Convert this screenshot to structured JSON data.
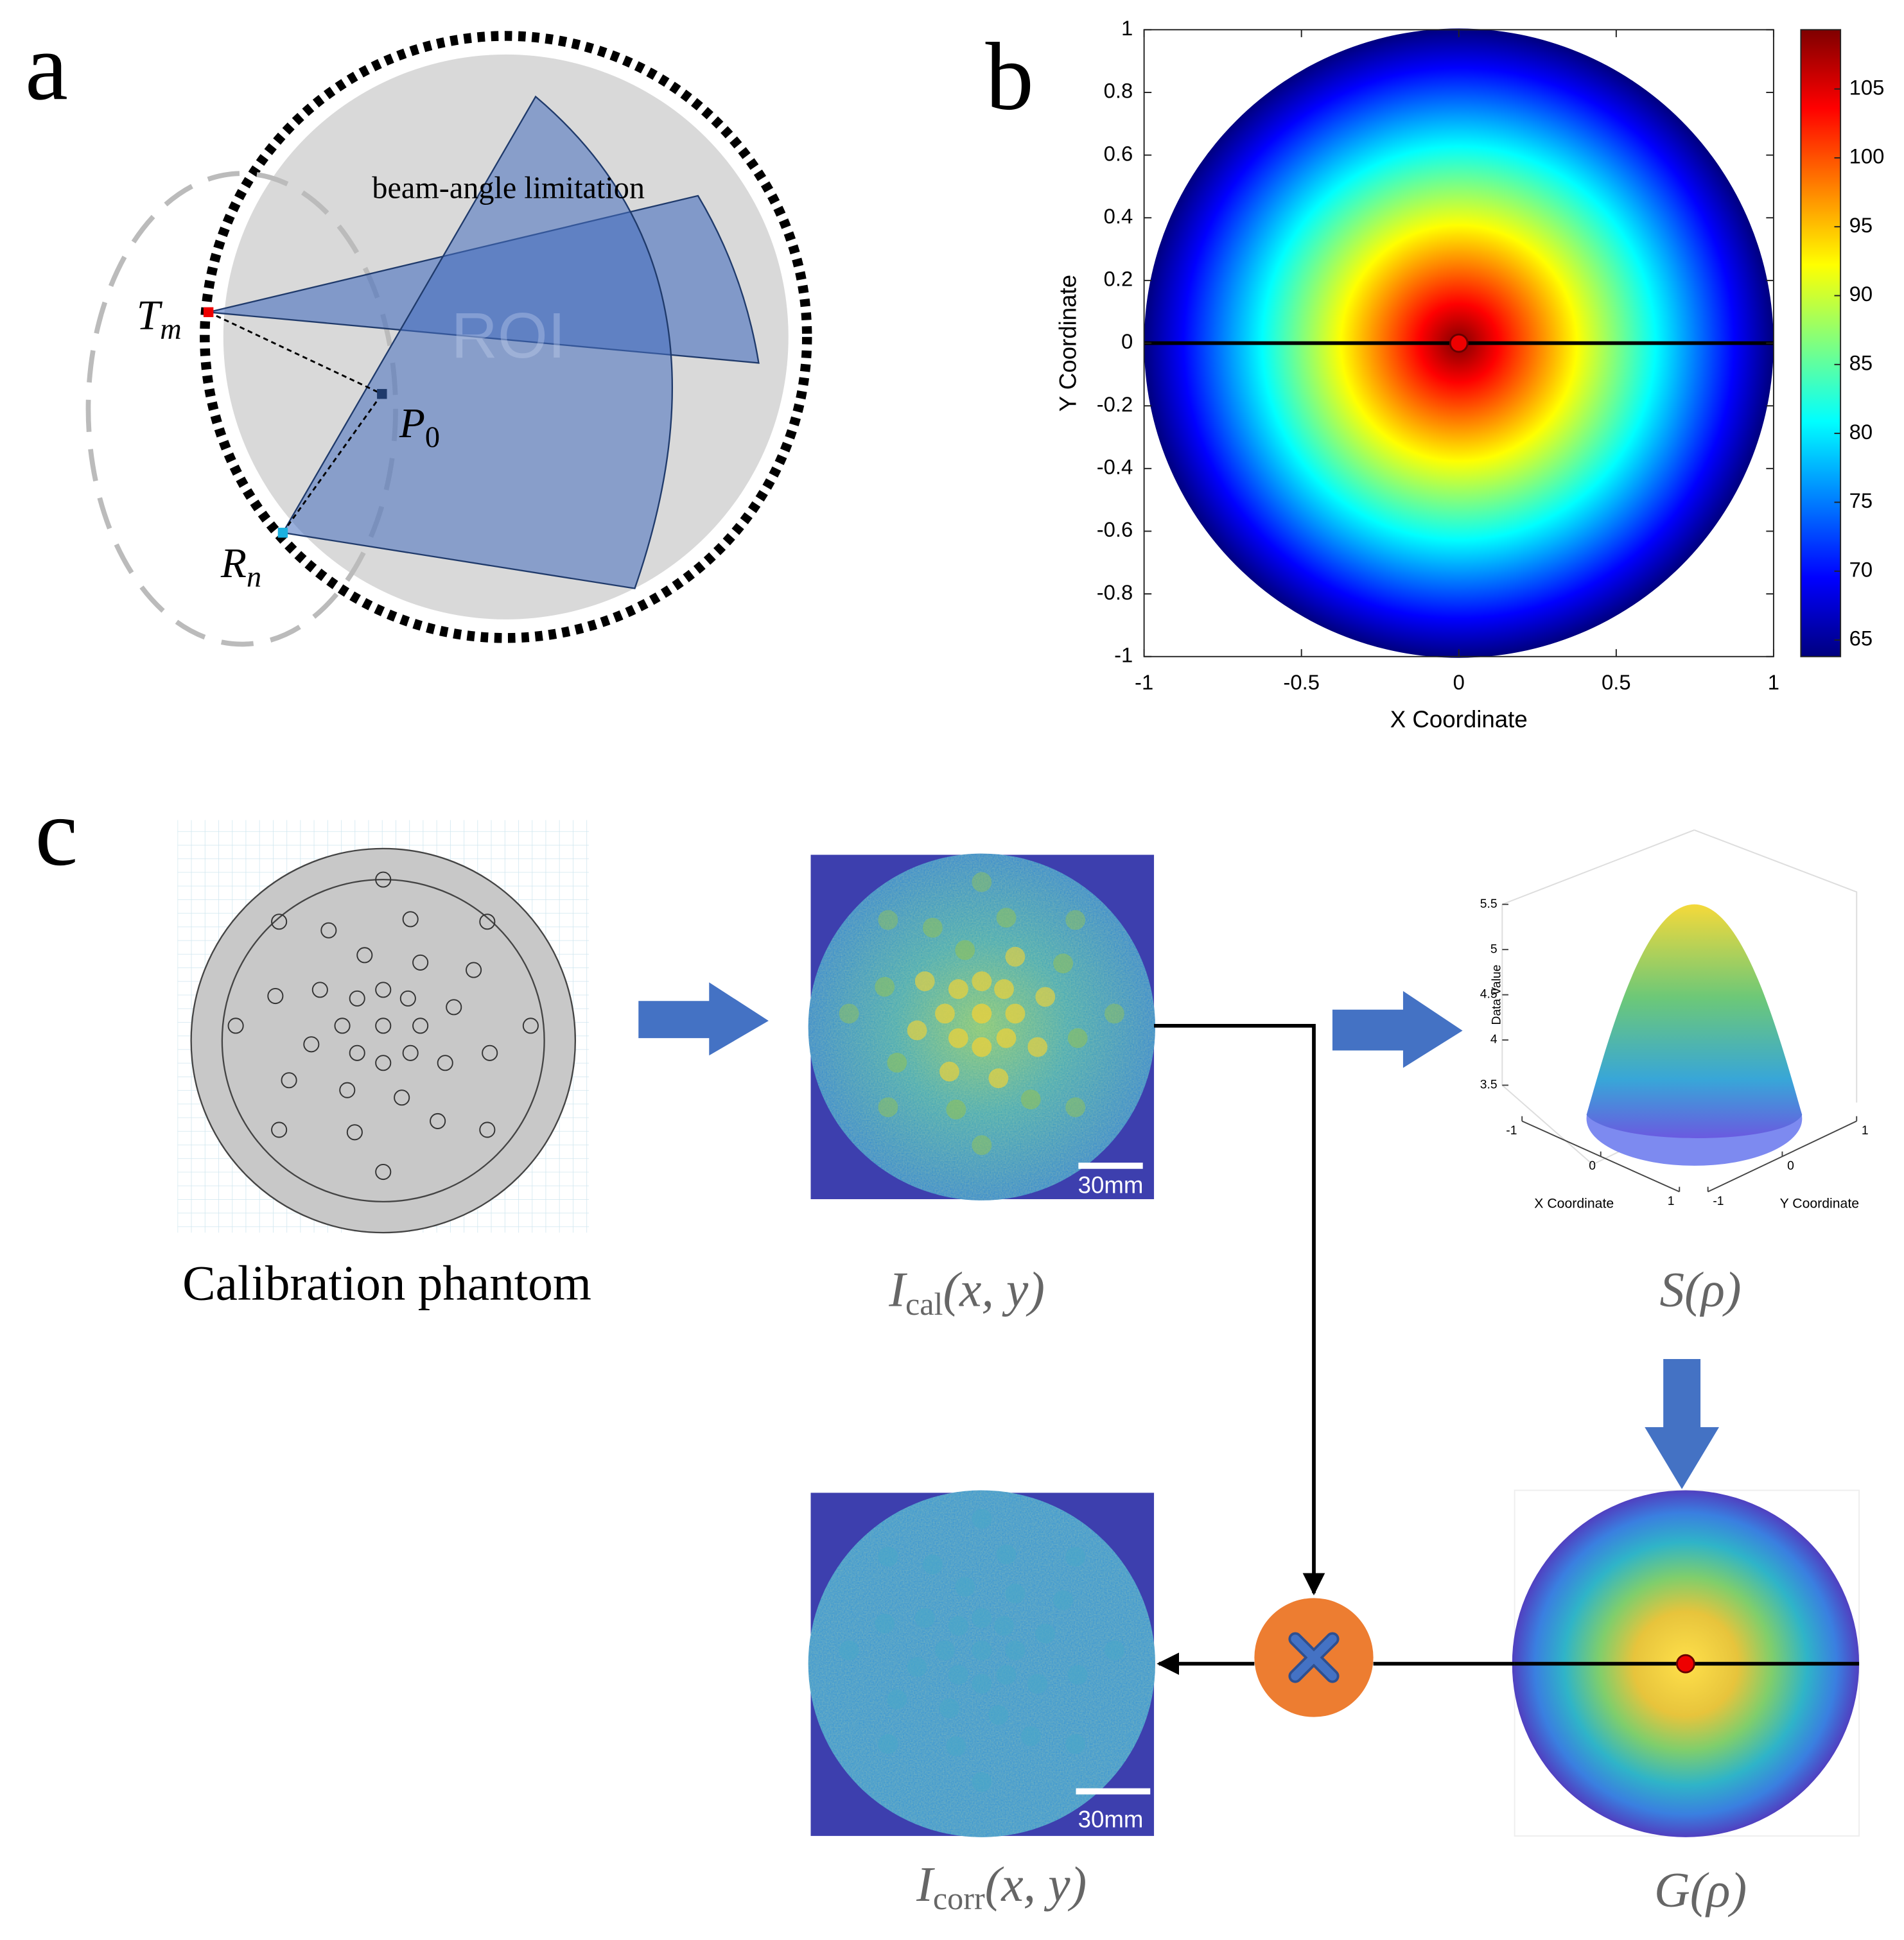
{
  "panel_a": {
    "label": "a",
    "annotation": "beam-angle limitation",
    "roi": "ROI",
    "transmitter": {
      "main": "T",
      "sub": "m"
    },
    "receiver": {
      "main": "R",
      "sub": "n"
    },
    "point": {
      "main": "P",
      "sub": "0"
    }
  },
  "panel_b": {
    "label": "b",
    "xlabel": "X Coordinate",
    "ylabel": "Y Coordinate",
    "xlim": [
      -1,
      1
    ],
    "ylim": [
      -1,
      1
    ],
    "xticks": [
      -1,
      -0.5,
      0,
      0.5,
      1
    ],
    "yticks": [
      -1,
      -0.8,
      -0.6,
      -0.4,
      -0.2,
      0,
      0.2,
      0.4,
      0.6,
      0.8,
      1
    ],
    "colorbar": {
      "lim": [
        63.8,
        109.3
      ],
      "ticks": [
        65,
        70,
        75,
        80,
        85,
        90,
        95,
        100,
        105
      ]
    }
  },
  "panel_c": {
    "label": "c",
    "phantom_caption": "Calibration phantom",
    "calibration_image": {
      "scale_bar": "30mm",
      "caption": {
        "main": "I",
        "sub": "cal",
        "args": "(x, y)"
      }
    },
    "surface_plot": {
      "zlabel": "Data Value",
      "xlabel": "X Coordinate",
      "ylabel": "Y Coordinate",
      "zlim": [
        3.5,
        5.5
      ],
      "zticks": [
        3.5,
        4,
        4.5,
        5,
        5.5
      ],
      "xticks": [
        -1,
        0,
        1
      ],
      "yticks": [
        -1,
        0,
        1
      ],
      "caption": "S(ρ)"
    },
    "gain_map": {
      "caption": "G(ρ)"
    },
    "corrected_image": {
      "scale_bar": "30mm",
      "caption": {
        "main": "I",
        "sub": "corr",
        "args": "(x, y)"
      }
    }
  }
}
